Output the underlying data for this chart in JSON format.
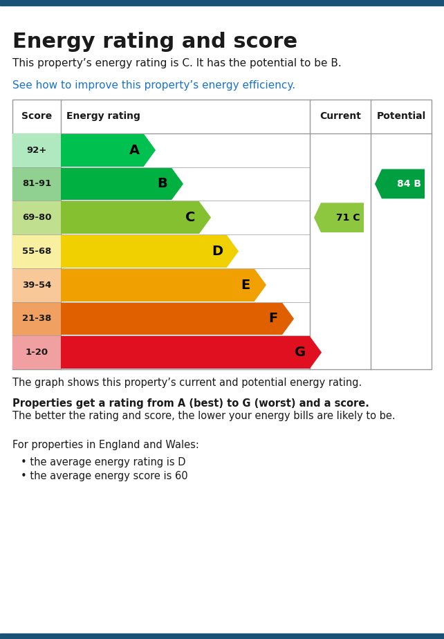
{
  "title": "Energy rating and score",
  "subtitle": "This property’s energy rating is C. It has the potential to be B.",
  "link_text": "See how to improve this property’s energy efficiency.",
  "ratings": [
    "A",
    "B",
    "C",
    "D",
    "E",
    "F",
    "G"
  ],
  "score_labels": [
    "92+",
    "81-91",
    "69-80",
    "55-68",
    "39-54",
    "21-38",
    "1-20"
  ],
  "bar_colors": [
    "#00c050",
    "#00b040",
    "#85c030",
    "#f0d000",
    "#f0a000",
    "#e06000",
    "#e01020"
  ],
  "score_bg_colors": [
    "#b0e8c0",
    "#90d090",
    "#c0e090",
    "#f8f0a0",
    "#f8c898",
    "#f0a060",
    "#f0a0a0"
  ],
  "bar_widths": [
    1.5,
    2.0,
    2.5,
    3.0,
    3.5,
    4.0,
    4.5
  ],
  "current_rating": "C",
  "current_score": 71,
  "current_color": "#8dc63f",
  "potential_rating": "B",
  "potential_score": 84,
  "potential_color": "#00a040",
  "footer_text1": "The graph shows this property’s current and potential energy rating.",
  "footer_bold": "Properties get a rating from A (best) to G (worst) and a score.",
  "footer_text2": " The better\nthe rating and score, the lower your energy bills are likely to be.",
  "footer_text3": "For properties in England and Wales:",
  "bullet1": "the average energy rating is D",
  "bullet2": "the average energy score is 60",
  "top_bar_color": "#1a5276",
  "bottom_bar_color": "#1a5276",
  "link_color": "#1a73c8",
  "background_color": "#ffffff",
  "table_border_color": "#999999",
  "text_color": "#1a1a1a"
}
